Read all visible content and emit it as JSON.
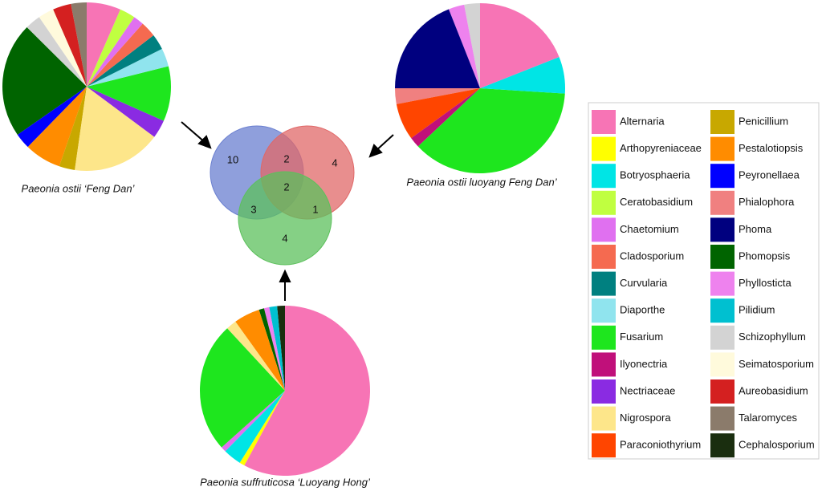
{
  "legend": {
    "names": [
      "Alternaria",
      "Arthopyreniaceae",
      "Botryosphaeria",
      "Ceratobasidium",
      "Chaetomium",
      "Cladosporium",
      "Curvularia",
      "Diaporthe",
      "Fusarium",
      "Ilyonectria",
      "Nectriaceae",
      "Nigrospora",
      "Paraconiothyrium",
      "Penicillium",
      "Pestalotiopsis",
      "Peyronellaea",
      "Phialophora",
      "Phoma",
      "Phomopsis",
      "Phyllosticta",
      "Pilidium",
      "Schizophyllum",
      "Seimatosporium",
      "Aureobasidium",
      "Talaromyces",
      "Cephalosporium"
    ],
    "colors": [
      "#f774b5",
      "#ffff00",
      "#00e5e5",
      "#c0ff40",
      "#e070f0",
      "#f56a50",
      "#008080",
      "#90e4ee",
      "#1ee61e",
      "#c0107a",
      "#8a2be2",
      "#fde68a",
      "#ff4500",
      "#c8a800",
      "#ff8c00",
      "#0000ff",
      "#f08080",
      "#00007f",
      "#006400",
      "#ee82ee",
      "#00c0d0",
      "#d3d3d3",
      "#fffadc",
      "#d42020",
      "#8b7b6b",
      "#1a2e0f"
    ]
  },
  "chart_data": [
    {
      "type": "pie",
      "title": "Paeonia ostii ‘Feng Dan’",
      "values": [
        6.5,
        0,
        0,
        3,
        2,
        3,
        3,
        3.5,
        10.5,
        0,
        3.5,
        17,
        0,
        3,
        7,
        3,
        0,
        0,
        22,
        0,
        0,
        3,
        3,
        3.5,
        3,
        0
      ]
    },
    {
      "type": "pie",
      "title": "Paeonia ostii luoyang Feng Dan’",
      "values": [
        19,
        0,
        7,
        0,
        0,
        0,
        0,
        0,
        37,
        2,
        0,
        0,
        7,
        0,
        0,
        0,
        3,
        19,
        0,
        3,
        0,
        3,
        0,
        0,
        0,
        0
      ]
    },
    {
      "type": "pie",
      "title": "Paeonia suffruticosa ‘Luoyang Hong’",
      "values": [
        58.5,
        1,
        3.5,
        0,
        1,
        0,
        0,
        0,
        25,
        0,
        0,
        2,
        0,
        0,
        5,
        0,
        0,
        0,
        1,
        1,
        1.5,
        0,
        0,
        0,
        0,
        1.5
      ]
    },
    {
      "type": "venn",
      "colors": [
        "#6a7fd0",
        "#e06868",
        "#5cc05c"
      ],
      "values": [
        10,
        2,
        4,
        2,
        3,
        1,
        4
      ]
    }
  ]
}
